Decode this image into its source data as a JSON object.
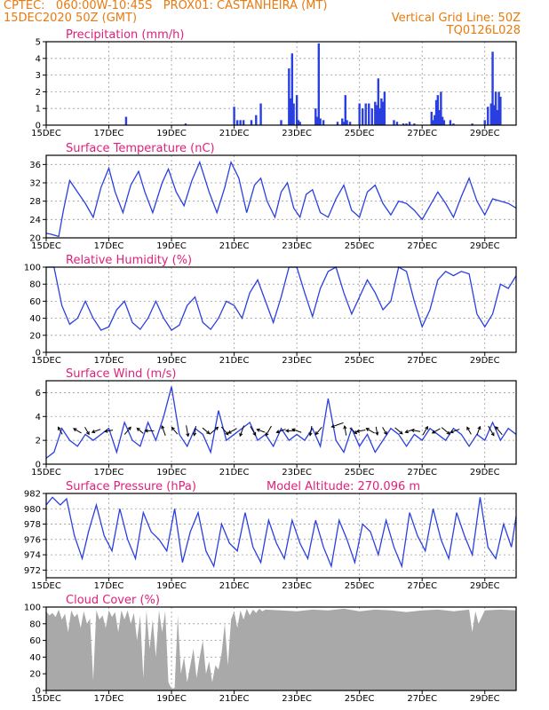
{
  "header": {
    "line1": "CPTEC:   060:00W-10:45S   PROX01: CASTANHEIRA (MT)",
    "line2_left": "15DEC2020 50Z (GMT)",
    "line2_right": "Vertical Grid Line: 50Z",
    "line3_right": "TQ0126L028"
  },
  "colors": {
    "header": "#e87a10",
    "title": "#e0207c",
    "line": "#2a3fe0",
    "bar": "#2a3fe0",
    "cloud": "#a9a9a9",
    "grid": "#9a9a9a"
  },
  "chart_data": [
    {
      "type": "bar",
      "title": "Precipitation (mm/h)",
      "xlabel": "",
      "ylabel": "",
      "xlim": [
        0,
        15
      ],
      "ylim": [
        0,
        5
      ],
      "yticks": [
        0,
        1,
        2,
        3,
        4,
        5
      ],
      "xtick_labels": [
        "15DEC",
        "17DEC",
        "19DEC",
        "21DEC",
        "23DEC",
        "25DEC",
        "27DEC",
        "29DEC"
      ],
      "grid": true,
      "x": [
        2.55,
        4.45,
        6.0,
        6.1,
        6.2,
        6.3,
        6.55,
        6.7,
        6.85,
        7.5,
        7.75,
        7.8,
        7.85,
        7.9,
        8.0,
        8.05,
        8.1,
        8.6,
        8.65,
        8.7,
        8.75,
        8.85,
        9.3,
        9.45,
        9.5,
        9.55,
        9.6,
        9.7,
        10.0,
        10.1,
        10.2,
        10.3,
        10.4,
        10.5,
        10.55,
        10.6,
        10.65,
        10.7,
        10.75,
        10.8,
        11.1,
        11.2,
        11.4,
        11.5,
        11.6,
        11.75,
        12.3,
        12.35,
        12.4,
        12.45,
        12.5,
        12.55,
        12.6,
        12.65,
        12.7,
        12.9,
        13.0,
        13.6,
        14.0,
        14.1,
        14.2,
        14.25,
        14.3,
        14.35,
        14.4,
        14.45,
        14.5
      ],
      "values": [
        0.5,
        0.1,
        1.1,
        0.3,
        0.3,
        0.3,
        0.3,
        0.6,
        1.3,
        0.3,
        3.4,
        1.6,
        4.3,
        1.3,
        1.8,
        0.3,
        0.2,
        1.0,
        0.5,
        4.9,
        0.4,
        0.3,
        0.2,
        0.4,
        0.2,
        1.8,
        0.3,
        0.2,
        1.3,
        1.0,
        1.3,
        1.3,
        1.0,
        1.4,
        1.2,
        2.8,
        1.0,
        1.6,
        1.4,
        2.0,
        0.3,
        0.2,
        0.1,
        0.1,
        0.2,
        0.1,
        0.8,
        0.3,
        0.6,
        1.5,
        1.8,
        0.9,
        2.0,
        0.5,
        0.3,
        0.3,
        0.1,
        0.1,
        0.3,
        1.1,
        1.3,
        4.4,
        1.2,
        2.0,
        0.9,
        2.0,
        1.7
      ]
    },
    {
      "type": "line",
      "title": "Surface Temperature (nC)",
      "xlabel": "",
      "ylabel": "",
      "xlim": [
        0,
        15
      ],
      "ylim": [
        20,
        38
      ],
      "yticks": [
        20,
        24,
        28,
        32,
        36
      ],
      "xtick_labels": [
        "15DEC",
        "17DEC",
        "19DEC",
        "21DEC",
        "23DEC",
        "25DEC",
        "27DEC",
        "29DEC"
      ],
      "grid": true,
      "x": [
        0,
        0.15,
        0.3,
        0.4,
        0.55,
        0.75,
        1.0,
        1.25,
        1.5,
        1.75,
        2.0,
        2.2,
        2.45,
        2.7,
        2.95,
        3.15,
        3.4,
        3.7,
        3.9,
        4.15,
        4.4,
        4.65,
        4.9,
        5.2,
        5.45,
        5.7,
        5.9,
        6.15,
        6.4,
        6.65,
        6.85,
        7.05,
        7.3,
        7.5,
        7.7,
        7.9,
        8.1,
        8.3,
        8.5,
        8.75,
        9.0,
        9.25,
        9.5,
        9.75,
        10.0,
        10.25,
        10.5,
        10.75,
        11.0,
        11.25,
        11.5,
        11.75,
        12.0,
        12.25,
        12.5,
        12.75,
        13.0,
        13.25,
        13.5,
        13.75,
        14.0,
        14.25,
        14.5,
        14.75,
        15.0
      ],
      "values": [
        21,
        20.8,
        20.5,
        20.3,
        26,
        32.5,
        30,
        27.5,
        24.5,
        31,
        35.2,
        30,
        25.5,
        31.5,
        34.5,
        30,
        25.5,
        32,
        35,
        30,
        27,
        32.5,
        36.5,
        30,
        25.5,
        31,
        36.5,
        33,
        25.5,
        31.5,
        33,
        28,
        24.5,
        30,
        32,
        26.5,
        24.5,
        29.5,
        30.5,
        25.5,
        24.5,
        28.5,
        31.5,
        26,
        24.5,
        30,
        31.5,
        27.5,
        25,
        28,
        27.5,
        26,
        24,
        27,
        30,
        27.5,
        24.5,
        29,
        33,
        28,
        25,
        28.5,
        28,
        27.5,
        26.5
      ]
    },
    {
      "type": "line",
      "title": "Relative Humidity (%)",
      "xlabel": "",
      "ylabel": "",
      "xlim": [
        0,
        15
      ],
      "ylim": [
        0,
        100
      ],
      "yticks": [
        0,
        20,
        40,
        60,
        80,
        100
      ],
      "xtick_labels": [
        "15DEC",
        "17DEC",
        "19DEC",
        "21DEC",
        "23DEC",
        "25DEC",
        "27DEC",
        "29DEC"
      ],
      "grid": true,
      "x": [
        0,
        0.25,
        0.5,
        0.75,
        1.0,
        1.25,
        1.5,
        1.75,
        2.0,
        2.25,
        2.5,
        2.75,
        3.0,
        3.25,
        3.5,
        3.75,
        4.0,
        4.25,
        4.5,
        4.75,
        5.0,
        5.25,
        5.5,
        5.75,
        6.0,
        6.25,
        6.5,
        6.75,
        7.0,
        7.25,
        7.5,
        7.75,
        8.0,
        8.25,
        8.5,
        8.75,
        9.0,
        9.25,
        9.5,
        9.75,
        10.0,
        10.25,
        10.5,
        10.75,
        11.0,
        11.25,
        11.5,
        11.75,
        12.0,
        12.25,
        12.5,
        12.75,
        13.0,
        13.25,
        13.5,
        13.75,
        14.0,
        14.25,
        14.5,
        14.75,
        15.0
      ],
      "values": [
        100,
        100,
        55,
        33,
        40,
        60,
        40,
        26,
        30,
        50,
        60,
        35,
        27,
        40,
        60,
        40,
        26,
        32,
        55,
        65,
        35,
        27,
        40,
        60,
        55,
        40,
        70,
        85,
        60,
        35,
        65,
        100,
        100,
        70,
        42,
        75,
        95,
        100,
        70,
        45,
        65,
        85,
        70,
        50,
        60,
        100,
        95,
        60,
        30,
        50,
        85,
        95,
        90,
        95,
        92,
        45,
        30,
        45,
        80,
        75,
        90
      ]
    },
    {
      "type": "line",
      "title": "Surface Wind (m/s)",
      "xlabel": "",
      "ylabel": "",
      "xlim": [
        0,
        15
      ],
      "ylim": [
        0,
        7
      ],
      "yticks": [
        0,
        2,
        4,
        6
      ],
      "xtick_labels": [
        "15DEC",
        "17DEC",
        "19DEC",
        "21DEC",
        "23DEC",
        "25DEC",
        "27DEC",
        "29DEC"
      ],
      "grid": true,
      "x": [
        0,
        0.25,
        0.5,
        0.75,
        1.0,
        1.25,
        1.5,
        1.75,
        2.0,
        2.25,
        2.5,
        2.75,
        3.0,
        3.25,
        3.5,
        3.75,
        4.0,
        4.25,
        4.5,
        4.75,
        5.0,
        5.25,
        5.5,
        5.75,
        6.0,
        6.25,
        6.5,
        6.75,
        7.0,
        7.25,
        7.5,
        7.75,
        8.0,
        8.25,
        8.5,
        8.75,
        9.0,
        9.25,
        9.5,
        9.75,
        10.0,
        10.25,
        10.5,
        10.75,
        11.0,
        11.25,
        11.5,
        11.75,
        12.0,
        12.25,
        12.5,
        12.75,
        13.0,
        13.25,
        13.5,
        13.75,
        14.0,
        14.25,
        14.5,
        14.75,
        15.0
      ],
      "values": [
        0.5,
        1.0,
        3.0,
        2.0,
        1.5,
        2.5,
        2.0,
        2.5,
        3.0,
        1.0,
        3.5,
        2.0,
        1.5,
        3.5,
        2.0,
        4.0,
        6.5,
        2.5,
        1.5,
        3.0,
        2.5,
        1.0,
        4.5,
        2.0,
        2.5,
        3.0,
        3.5,
        2.0,
        2.5,
        1.5,
        3.0,
        2.0,
        2.5,
        2.0,
        3.0,
        1.5,
        5.5,
        2.0,
        1.0,
        3.0,
        1.5,
        2.5,
        1.0,
        2.0,
        3.0,
        2.5,
        1.5,
        2.5,
        2.0,
        3.0,
        2.5,
        2.0,
        3.0,
        2.5,
        1.5,
        2.5,
        2.0,
        3.5,
        2.0,
        3.0,
        2.5
      ],
      "vectors": {
        "x": [
          0.45,
          1.0,
          1.3,
          1.6,
          2.0,
          2.6,
          3.0,
          3.3,
          3.75,
          4.1,
          4.5,
          4.75,
          5.1,
          5.35,
          5.7,
          5.95,
          6.25,
          6.6,
          6.85,
          7.1,
          7.5,
          7.8,
          8.0,
          8.45,
          8.7,
          9.3,
          9.55,
          9.8,
          10.05,
          10.35,
          10.55,
          10.8,
          11.25,
          11.6,
          11.8,
          12.1,
          12.45,
          12.75,
          13.05,
          13.5,
          13.8,
          14.2,
          14.45
        ],
        "dir_deg": [
          120,
          150,
          300,
          200,
          190,
          50,
          140,
          180,
          110,
          130,
          280,
          260,
          320,
          40,
          310,
          210,
          250,
          300,
          160,
          240,
          200,
          180,
          160,
          260,
          230,
          200,
          100,
          320,
          190,
          150,
          280,
          300,
          320,
          200,
          170,
          60,
          210,
          320,
          200,
          120,
          70,
          300,
          130
        ],
        "speed": [
          2.0,
          2.5,
          2.0,
          2.5,
          2.0,
          3.0,
          2.0,
          2.5,
          3.5,
          2.5,
          4.0,
          3.0,
          2.5,
          4.0,
          3.5,
          3.0,
          4.0,
          3.5,
          2.0,
          4.0,
          3.0,
          2.5,
          3.0,
          3.0,
          3.0,
          5.0,
          3.0,
          2.5,
          2.5,
          3.0,
          2.0,
          2.0,
          3.0,
          2.5,
          2.5,
          3.0,
          2.5,
          3.5,
          3.0,
          2.0,
          2.5,
          4.0,
          3.5
        ]
      }
    },
    {
      "type": "line",
      "title": "Surface Pressure (hPa)",
      "annotation": "Model Altitude: 270.096 m",
      "xlabel": "",
      "ylabel": "",
      "xlim": [
        0,
        15
      ],
      "ylim": [
        971,
        982
      ],
      "yticks": [
        972,
        974,
        976,
        978,
        980,
        982
      ],
      "xtick_labels": [
        "15DEC",
        "17DEC",
        "19DEC",
        "21DEC",
        "23DEC",
        "25DEC",
        "27DEC",
        "29DEC"
      ],
      "grid": true,
      "x": [
        0,
        0.2,
        0.45,
        0.65,
        0.9,
        1.15,
        1.35,
        1.6,
        1.85,
        2.1,
        2.35,
        2.6,
        2.85,
        3.1,
        3.35,
        3.6,
        3.85,
        4.1,
        4.35,
        4.6,
        4.85,
        5.1,
        5.35,
        5.6,
        5.85,
        6.1,
        6.35,
        6.6,
        6.85,
        7.1,
        7.35,
        7.6,
        7.85,
        8.1,
        8.35,
        8.6,
        8.85,
        9.1,
        9.35,
        9.6,
        9.85,
        10.1,
        10.35,
        10.6,
        10.85,
        11.1,
        11.35,
        11.6,
        11.85,
        12.1,
        12.35,
        12.6,
        12.85,
        13.1,
        13.35,
        13.6,
        13.85,
        14.1,
        14.35,
        14.6,
        14.85,
        15.0
      ],
      "values": [
        980.5,
        981.5,
        980.5,
        981.3,
        976.5,
        973.5,
        977.0,
        980.5,
        976.5,
        974.5,
        980.0,
        976.0,
        973.5,
        979.5,
        977.0,
        976.0,
        974.5,
        980.0,
        973.0,
        977.0,
        979.5,
        974.5,
        972.5,
        978.0,
        975.5,
        974.5,
        979.5,
        975.0,
        973.0,
        978.5,
        975.5,
        973.5,
        978.5,
        975.5,
        973.5,
        978.5,
        975.0,
        972.5,
        978.5,
        976.0,
        973.0,
        978.0,
        977.0,
        974.0,
        978.5,
        975.0,
        972.5,
        979.5,
        976.5,
        974.5,
        980.0,
        976.0,
        973.5,
        979.5,
        976.5,
        974.0,
        981.5,
        975.0,
        973.5,
        978.0,
        975.0,
        979.0
      ]
    },
    {
      "type": "area",
      "title": "Cloud Cover (%)",
      "xlabel": "",
      "ylabel": "",
      "xlim": [
        0,
        15
      ],
      "ylim": [
        0,
        100
      ],
      "yticks": [
        0,
        20,
        40,
        60,
        80,
        100
      ],
      "xtick_labels": [
        "15DEC",
        "17DEC",
        "19DEC",
        "21DEC",
        "23DEC",
        "25DEC",
        "27DEC",
        "29DEC"
      ],
      "grid": true,
      "x": [
        0,
        0.1,
        0.2,
        0.3,
        0.4,
        0.5,
        0.6,
        0.7,
        0.8,
        0.9,
        1.0,
        1.1,
        1.2,
        1.3,
        1.4,
        1.5,
        1.6,
        1.7,
        1.8,
        1.9,
        2.0,
        2.1,
        2.2,
        2.3,
        2.4,
        2.5,
        2.6,
        2.7,
        2.8,
        2.9,
        3.0,
        3.1,
        3.2,
        3.3,
        3.4,
        3.5,
        3.6,
        3.7,
        3.8,
        3.9,
        4.0,
        4.1,
        4.2,
        4.3,
        4.4,
        4.5,
        4.6,
        4.7,
        4.8,
        4.9,
        5.0,
        5.1,
        5.2,
        5.3,
        5.4,
        5.5,
        5.6,
        5.7,
        5.8,
        5.9,
        6.0,
        6.1,
        6.2,
        6.3,
        6.4,
        6.5,
        6.6,
        6.7,
        6.8,
        6.9,
        7.0,
        7.5,
        8.0,
        8.5,
        9.0,
        9.5,
        10.0,
        10.5,
        11.0,
        11.5,
        12.0,
        12.5,
        13.0,
        13.5,
        13.6,
        13.7,
        13.8,
        14.0,
        14.5,
        15.0
      ],
      "values": [
        95,
        90,
        93,
        88,
        97,
        85,
        92,
        70,
        96,
        88,
        92,
        75,
        95,
        80,
        86,
        12,
        96,
        85,
        90,
        75,
        96,
        88,
        94,
        70,
        96,
        85,
        96,
        80,
        93,
        60,
        90,
        15,
        96,
        50,
        85,
        40,
        96,
        70,
        95,
        10,
        2,
        3,
        90,
        20,
        40,
        10,
        30,
        50,
        15,
        40,
        60,
        20,
        35,
        10,
        30,
        25,
        45,
        80,
        30,
        85,
        95,
        75,
        96,
        85,
        98,
        90,
        97,
        93,
        98,
        95,
        97,
        96,
        95,
        97,
        96,
        98,
        95,
        97,
        96,
        94,
        96,
        97,
        95,
        97,
        70,
        95,
        80,
        96,
        97,
        96
      ]
    }
  ]
}
